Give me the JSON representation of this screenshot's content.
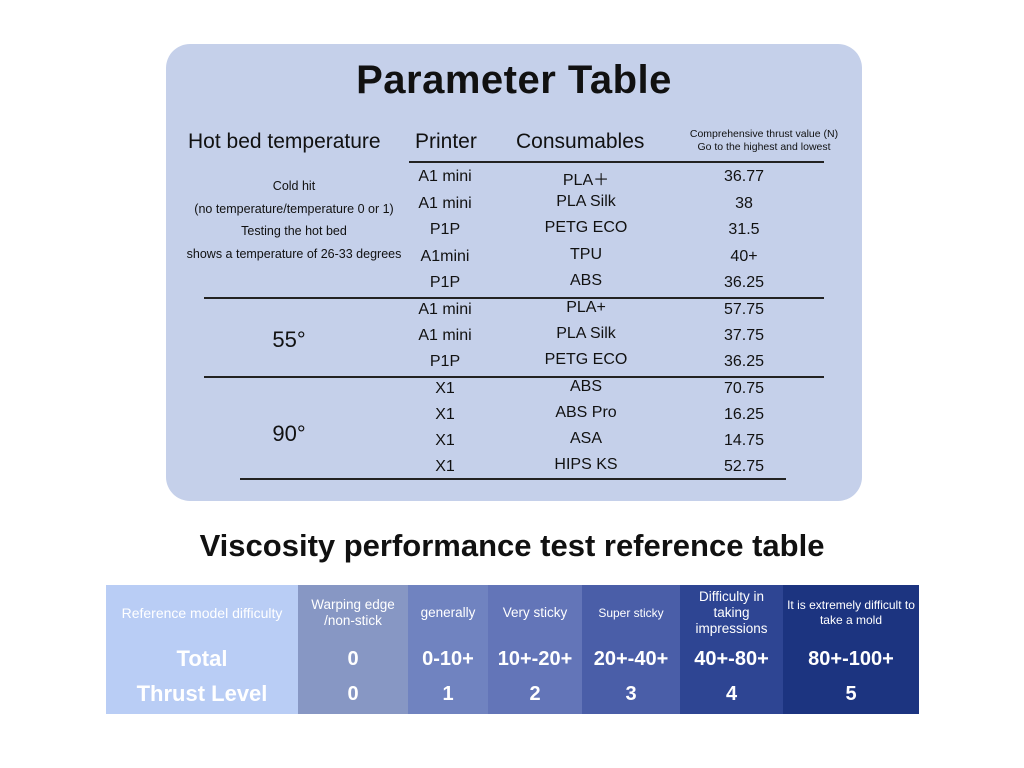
{
  "parameter_table": {
    "title": "Parameter Table",
    "headers": {
      "hot_bed": "Hot bed temperature",
      "printer": "Printer",
      "consumables": "Consumables",
      "thrust_line1": "Comprehensive thrust value (N)",
      "thrust_line2": "Go to the highest and lowest"
    },
    "groups": [
      {
        "label_lines": [
          "Cold hit",
          "(no temperature/temperature 0 or 1)",
          "Testing the hot bed",
          "shows a temperature of 26-33 degrees"
        ],
        "rows": [
          {
            "printer": "A1 mini",
            "consumable": "PLA＋",
            "thrust": "36.77"
          },
          {
            "printer": "A1 mini",
            "consumable": "PLA Silk",
            "thrust": "38"
          },
          {
            "printer": "P1P",
            "consumable": "PETG ECO",
            "thrust": "31.5"
          },
          {
            "printer": "A1mini",
            "consumable": "TPU",
            "thrust": "40+"
          },
          {
            "printer": "P1P",
            "consumable": "ABS",
            "thrust": "36.25"
          }
        ]
      },
      {
        "label_lines": [
          "55°"
        ],
        "rows": [
          {
            "printer": "A1 mini",
            "consumable": "PLA+",
            "thrust": "57.75"
          },
          {
            "printer": "A1 mini",
            "consumable": "PLA Silk",
            "thrust": "37.75"
          },
          {
            "printer": "P1P",
            "consumable": "PETG ECO",
            "thrust": "36.25"
          }
        ]
      },
      {
        "label_lines": [
          "90°"
        ],
        "rows": [
          {
            "printer": "X1",
            "consumable": "ABS",
            "thrust": "70.75"
          },
          {
            "printer": "X1",
            "consumable": "ABS Pro",
            "thrust": "16.25"
          },
          {
            "printer": "X1",
            "consumable": "ASA",
            "thrust": "14.75"
          },
          {
            "printer": "X1",
            "consumable": "HIPS KS",
            "thrust": "52.75"
          }
        ]
      }
    ]
  },
  "viscosity_table": {
    "title": "Viscosity performance test reference table",
    "columns": [
      {
        "header": "Reference model  difficulty",
        "total": "Total",
        "level": "Thrust Level",
        "color": "#b9cdf5"
      },
      {
        "header": "Warping edge /non-stick",
        "total": "0",
        "level": "0",
        "color": "#8797c4"
      },
      {
        "header": "generally",
        "total": "0-10+",
        "level": "1",
        "color": "#7083c0"
      },
      {
        "header": "Very sticky",
        "total": "10+-20+",
        "level": "2",
        "color": "#6375b8"
      },
      {
        "header": "Super sticky",
        "total": "20+-40+",
        "level": "3",
        "color": "#4a5ea8"
      },
      {
        "header": "Difficulty in taking impressions",
        "total": "40+-80+",
        "level": "4",
        "color": "#2e4593"
      },
      {
        "header": "It is extremely difficult to take a mold",
        "total": "80+-100+",
        "level": "5",
        "color": "#1c3480"
      }
    ]
  }
}
